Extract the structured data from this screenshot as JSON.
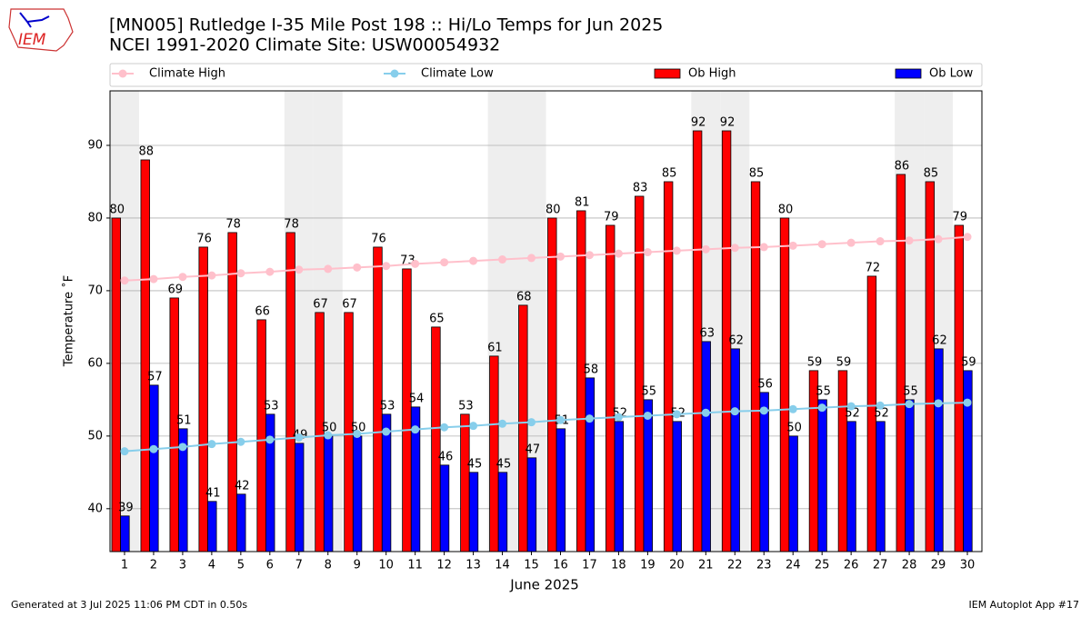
{
  "logo": "IEM",
  "footer": {
    "left": "Generated at 3 Jul 2025 11:06 PM CDT in 0.50s",
    "right": "IEM Autoplot App #17"
  },
  "chart_data": {
    "type": "bar",
    "title": "[MN005] Rutledge I-35 Mile Post 198 :: Hi/Lo Temps for Jun 2025",
    "subtitle": "NCEI 1991-2020 Climate Site: USW00054932",
    "x_label": "June 2025",
    "y_label": "Temperature ˚F",
    "categories": [
      "1",
      "2",
      "3",
      "4",
      "5",
      "6",
      "7",
      "8",
      "9",
      "10",
      "11",
      "12",
      "13",
      "14",
      "15",
      "16",
      "17",
      "18",
      "19",
      "20",
      "21",
      "22",
      "23",
      "24",
      "25",
      "26",
      "27",
      "28",
      "29",
      "30"
    ],
    "ylim": [
      34.1,
      97.5
    ],
    "yticks": [
      40,
      50,
      60,
      70,
      80,
      90
    ],
    "grid": true,
    "series": [
      {
        "name": "Climate High",
        "type": "line",
        "color": "#ffc0cb",
        "values": [
          71.4,
          71.6,
          71.9,
          72.1,
          72.4,
          72.6,
          72.9,
          73.0,
          73.2,
          73.4,
          73.7,
          73.9,
          74.1,
          74.3,
          74.5,
          74.7,
          74.9,
          75.1,
          75.3,
          75.5,
          75.7,
          75.9,
          76.0,
          76.2,
          76.4,
          76.6,
          76.8,
          76.9,
          77.1,
          77.4
        ]
      },
      {
        "name": "Climate Low",
        "type": "line",
        "color": "#87ceeb",
        "values": [
          47.9,
          48.2,
          48.5,
          48.9,
          49.2,
          49.5,
          49.8,
          50.1,
          50.3,
          50.6,
          50.9,
          51.2,
          51.4,
          51.7,
          51.9,
          52.2,
          52.4,
          52.6,
          52.8,
          53.0,
          53.2,
          53.4,
          53.5,
          53.7,
          53.9,
          54.1,
          54.2,
          54.4,
          54.5,
          54.6
        ]
      },
      {
        "name": "Ob High",
        "type": "bar",
        "color": "#ff0000",
        "values": [
          80,
          88,
          69,
          76,
          78,
          66,
          78,
          67,
          67,
          76,
          73,
          65,
          53,
          61,
          68,
          80,
          81,
          79,
          83,
          85,
          92,
          92,
          85,
          80,
          59,
          59,
          72,
          86,
          85,
          79
        ]
      },
      {
        "name": "Ob Low",
        "type": "bar",
        "color": "#0000ff",
        "values": [
          39,
          57,
          51,
          41,
          42,
          53,
          49,
          50,
          50,
          53,
          54,
          46,
          45,
          45,
          47,
          51,
          58,
          52,
          55,
          52,
          63,
          62,
          56,
          50,
          55,
          52,
          52,
          55,
          62,
          59
        ]
      }
    ]
  }
}
